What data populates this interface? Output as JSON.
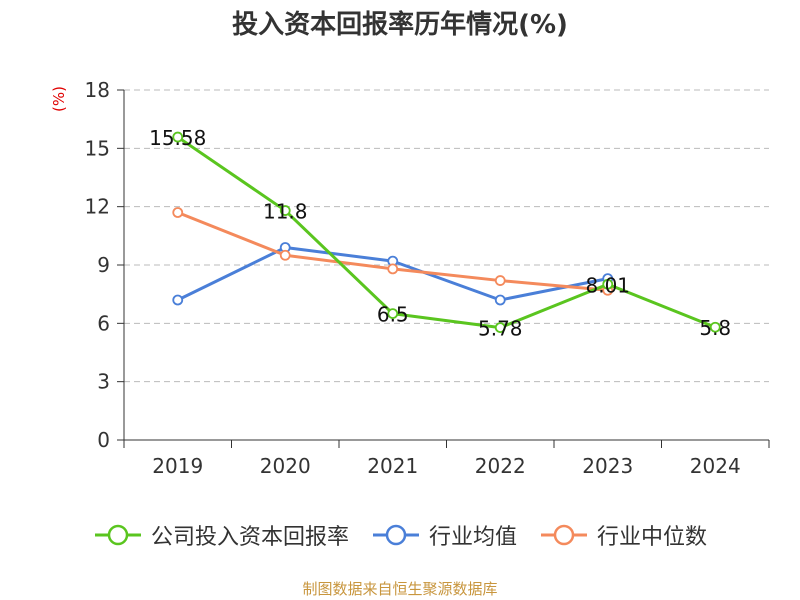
{
  "title": "投入资本回报率历年情况(%)",
  "unit_label": "(%)",
  "source_text": "制图数据来自恒生聚源数据库",
  "colors": {
    "company": "#5ac51f",
    "industry_avg": "#4a7fd8",
    "industry_median": "#f48a5c",
    "grid": "#bbbbbb",
    "axis": "#333333",
    "unit": "#e00000",
    "source": "#c8963e"
  },
  "chart_data": {
    "type": "line",
    "title": "投入资本回报率历年情况(%)",
    "ylabel": "(%)",
    "xlabel": "",
    "categories": [
      "2019",
      "2020",
      "2021",
      "2022",
      "2023",
      "2024"
    ],
    "ylim": [
      0,
      18
    ],
    "yticks": [
      0,
      3,
      6,
      9,
      12,
      15,
      18
    ],
    "grid": "horizontal dashed",
    "legend_position": "bottom",
    "series": [
      {
        "name": "公司投入资本回报率",
        "color": "#5ac51f",
        "values": [
          15.58,
          11.8,
          6.5,
          5.78,
          8.01,
          5.8
        ],
        "labels": [
          "15.58",
          "11.8",
          "6.5",
          "5.78",
          "8.01",
          "5.8"
        ]
      },
      {
        "name": "行业均值",
        "color": "#4a7fd8",
        "values": [
          7.2,
          9.9,
          9.2,
          7.2,
          8.3,
          null
        ]
      },
      {
        "name": "行业中位数",
        "color": "#f48a5c",
        "values": [
          11.7,
          9.5,
          8.8,
          8.2,
          7.7,
          null
        ]
      }
    ]
  }
}
